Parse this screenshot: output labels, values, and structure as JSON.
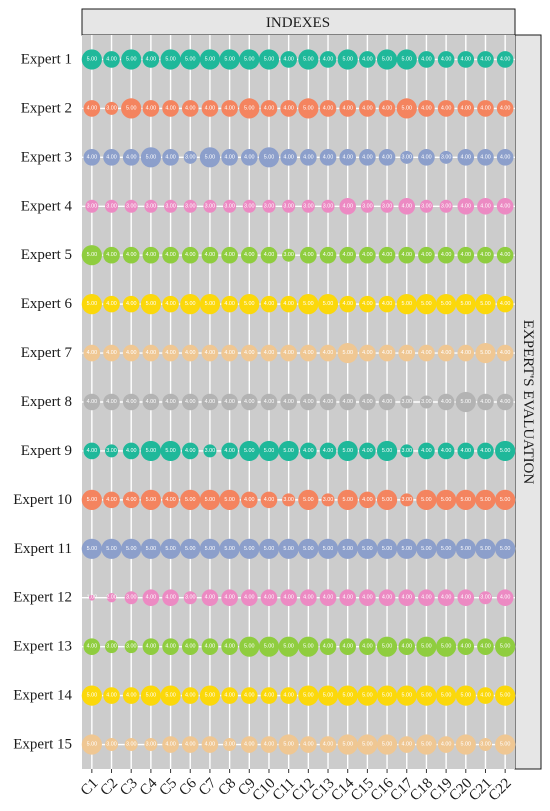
{
  "chart_data": {
    "type": "bubble",
    "top_strip_label": "INDEXES",
    "right_strip_label": "EXPERT'S EVALUATION",
    "categories": [
      "C1",
      "C2",
      "C3",
      "C4",
      "C5",
      "C6",
      "C7",
      "C8",
      "C9",
      "C10",
      "C11",
      "C12",
      "C13",
      "C14",
      "C15",
      "C16",
      "C17",
      "C18",
      "C19",
      "C20",
      "C21",
      "C22"
    ],
    "experts": [
      "Expert 1",
      "Expert 2",
      "Expert 3",
      "Expert 4",
      "Expert 5",
      "Expert 6",
      "Expert 7",
      "Expert 8",
      "Expert 9",
      "Expert 10",
      "Expert 11",
      "Expert 12",
      "Expert 13",
      "Expert 14",
      "Expert 15"
    ],
    "expert_colors": [
      "#1fb89a",
      "#f4845f",
      "#8c9fcb",
      "#ec8ac3",
      "#8fcd3f",
      "#fbd80b",
      "#efc793",
      "#b3b3b3",
      "#1fb89a",
      "#f4845f",
      "#8c9fcb",
      "#ec8ac3",
      "#8fcd3f",
      "#fbd80b",
      "#efc793"
    ],
    "values": [
      [
        5,
        4,
        5,
        4,
        5,
        5,
        5,
        5,
        5,
        5,
        4,
        5,
        4,
        5,
        4,
        5,
        5,
        4,
        4,
        4,
        4,
        4
      ],
      [
        4,
        3,
        5,
        4,
        4,
        4,
        4,
        4,
        5,
        4,
        4,
        5,
        4,
        4,
        4,
        4,
        5,
        4,
        4,
        4,
        4,
        4
      ],
      [
        4,
        4,
        4,
        5,
        4,
        3,
        5,
        4,
        4,
        5,
        4,
        4,
        4,
        4,
        4,
        4,
        3,
        4,
        3,
        4,
        4,
        4
      ],
      [
        3,
        3,
        3,
        3,
        3,
        3,
        3,
        3,
        3,
        3,
        3,
        3,
        3,
        4,
        3,
        3,
        4,
        3,
        3,
        4,
        4,
        4
      ],
      [
        5,
        4,
        4,
        4,
        4,
        4,
        4,
        4,
        4,
        4,
        3,
        4,
        4,
        4,
        4,
        4,
        4,
        4,
        4,
        4,
        4,
        4
      ],
      [
        5,
        4,
        4,
        5,
        4,
        5,
        5,
        4,
        5,
        4,
        4,
        5,
        5,
        4,
        4,
        4,
        5,
        5,
        5,
        5,
        5,
        4
      ],
      [
        4,
        4,
        4,
        4,
        4,
        4,
        4,
        4,
        4,
        4,
        4,
        4,
        4,
        5,
        4,
        4,
        4,
        4,
        4,
        4,
        5,
        4
      ],
      [
        4,
        4,
        4,
        4,
        4,
        4,
        4,
        4,
        4,
        4,
        4,
        4,
        4,
        4,
        4,
        4,
        3,
        3,
        4,
        5,
        4,
        4
      ],
      [
        4,
        3,
        4,
        5,
        5,
        4,
        3,
        4,
        5,
        5,
        5,
        4,
        4,
        5,
        4,
        5,
        3,
        4,
        4,
        4,
        4,
        5
      ],
      [
        5,
        4,
        4,
        5,
        4,
        5,
        5,
        5,
        4,
        4,
        3,
        5,
        3,
        5,
        4,
        5,
        3,
        5,
        5,
        5,
        5,
        5
      ],
      [
        5,
        5,
        5,
        5,
        5,
        5,
        5,
        5,
        5,
        5,
        5,
        5,
        5,
        5,
        5,
        5,
        5,
        5,
        5,
        5,
        5,
        5
      ],
      [
        1,
        2,
        3,
        4,
        4,
        3,
        4,
        4,
        4,
        4,
        4,
        4,
        4,
        4,
        4,
        4,
        4,
        4,
        4,
        4,
        3,
        4
      ],
      [
        4,
        3,
        3,
        4,
        4,
        4,
        4,
        4,
        5,
        5,
        5,
        5,
        4,
        4,
        4,
        5,
        4,
        5,
        5,
        4,
        4,
        5
      ],
      [
        5,
        4,
        4,
        5,
        5,
        4,
        5,
        4,
        4,
        4,
        4,
        5,
        5,
        5,
        5,
        5,
        5,
        5,
        5,
        5,
        4,
        5
      ],
      [
        5,
        3,
        3,
        3,
        4,
        4,
        4,
        3,
        4,
        4,
        5,
        4,
        4,
        5,
        5,
        5,
        4,
        5,
        4,
        5,
        3,
        5
      ]
    ],
    "value_label_format": "0.00",
    "panel_background": "#cccccc",
    "grid": true
  }
}
